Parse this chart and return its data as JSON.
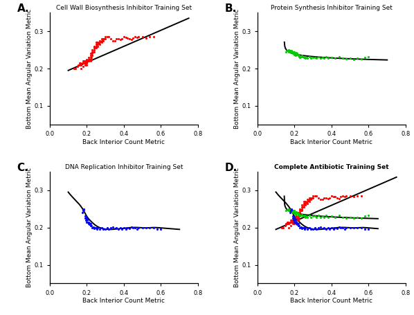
{
  "panel_A": {
    "title": "Cell Wall Biosynthesis Inhibitor Training Set",
    "color": "#ff0000",
    "x": [
      0.13,
      0.14,
      0.15,
      0.155,
      0.16,
      0.16,
      0.165,
      0.17,
      0.17,
      0.175,
      0.18,
      0.18,
      0.18,
      0.185,
      0.19,
      0.19,
      0.19,
      0.19,
      0.195,
      0.2,
      0.2,
      0.2,
      0.2,
      0.2,
      0.2,
      0.205,
      0.21,
      0.21,
      0.21,
      0.21,
      0.21,
      0.215,
      0.22,
      0.22,
      0.22,
      0.22,
      0.22,
      0.22,
      0.225,
      0.23,
      0.23,
      0.23,
      0.23,
      0.235,
      0.24,
      0.24,
      0.24,
      0.24,
      0.245,
      0.25,
      0.25,
      0.25,
      0.25,
      0.255,
      0.26,
      0.26,
      0.26,
      0.265,
      0.27,
      0.27,
      0.27,
      0.275,
      0.28,
      0.28,
      0.28,
      0.285,
      0.29,
      0.29,
      0.295,
      0.3,
      0.3,
      0.31,
      0.32,
      0.33,
      0.34,
      0.35,
      0.36,
      0.37,
      0.38,
      0.39,
      0.4,
      0.41,
      0.42,
      0.43,
      0.44,
      0.45,
      0.46,
      0.47,
      0.48,
      0.5,
      0.52,
      0.54,
      0.56
    ],
    "y": [
      0.2,
      0.2,
      0.205,
      0.21,
      0.21,
      0.215,
      0.215,
      0.2,
      0.21,
      0.215,
      0.205,
      0.215,
      0.22,
      0.22,
      0.215,
      0.21,
      0.215,
      0.22,
      0.22,
      0.21,
      0.215,
      0.22,
      0.225,
      0.22,
      0.215,
      0.22,
      0.22,
      0.225,
      0.22,
      0.225,
      0.23,
      0.225,
      0.22,
      0.225,
      0.23,
      0.235,
      0.24,
      0.225,
      0.23,
      0.235,
      0.24,
      0.245,
      0.25,
      0.245,
      0.245,
      0.25,
      0.255,
      0.26,
      0.255,
      0.255,
      0.26,
      0.265,
      0.27,
      0.265,
      0.26,
      0.265,
      0.27,
      0.268,
      0.265,
      0.27,
      0.275,
      0.272,
      0.27,
      0.275,
      0.28,
      0.278,
      0.275,
      0.28,
      0.28,
      0.28,
      0.285,
      0.285,
      0.285,
      0.28,
      0.275,
      0.275,
      0.28,
      0.28,
      0.278,
      0.28,
      0.285,
      0.283,
      0.282,
      0.28,
      0.278,
      0.282,
      0.285,
      0.283,
      0.285,
      0.285,
      0.282,
      0.285,
      0.285
    ],
    "fit_x_start": 0.1,
    "fit_x_end": 0.75,
    "fit_y_start": 0.195,
    "fit_y_end": 0.335
  },
  "panel_B": {
    "title": "Protein Synthesis Inhibitor Training Set",
    "color": "#00ff00",
    "x": [
      0.155,
      0.16,
      0.165,
      0.17,
      0.17,
      0.175,
      0.18,
      0.18,
      0.185,
      0.185,
      0.19,
      0.19,
      0.19,
      0.195,
      0.195,
      0.2,
      0.2,
      0.2,
      0.205,
      0.205,
      0.21,
      0.21,
      0.215,
      0.215,
      0.22,
      0.22,
      0.225,
      0.225,
      0.23,
      0.23,
      0.235,
      0.24,
      0.245,
      0.25,
      0.255,
      0.26,
      0.265,
      0.27,
      0.28,
      0.29,
      0.3,
      0.31,
      0.32,
      0.33,
      0.34,
      0.35,
      0.36,
      0.37,
      0.38,
      0.4,
      0.42,
      0.44,
      0.46,
      0.48,
      0.5,
      0.52,
      0.54,
      0.56,
      0.58,
      0.6
    ],
    "y": [
      0.245,
      0.248,
      0.248,
      0.245,
      0.25,
      0.248,
      0.245,
      0.242,
      0.248,
      0.245,
      0.242,
      0.24,
      0.245,
      0.245,
      0.24,
      0.242,
      0.245,
      0.238,
      0.24,
      0.235,
      0.238,
      0.242,
      0.238,
      0.24,
      0.235,
      0.238,
      0.235,
      0.232,
      0.232,
      0.23,
      0.232,
      0.235,
      0.232,
      0.23,
      0.232,
      0.228,
      0.23,
      0.228,
      0.232,
      0.228,
      0.23,
      0.23,
      0.228,
      0.232,
      0.228,
      0.23,
      0.228,
      0.232,
      0.228,
      0.23,
      0.228,
      0.232,
      0.228,
      0.226,
      0.228,
      0.225,
      0.228,
      0.226,
      0.23,
      0.232
    ]
  },
  "panel_C": {
    "title": "DNA Replication Inhibitor Training Set",
    "color": "#0000ff",
    "x": [
      0.175,
      0.18,
      0.185,
      0.185,
      0.19,
      0.19,
      0.195,
      0.195,
      0.2,
      0.2,
      0.2,
      0.205,
      0.205,
      0.21,
      0.21,
      0.215,
      0.215,
      0.22,
      0.22,
      0.225,
      0.23,
      0.235,
      0.24,
      0.245,
      0.25,
      0.255,
      0.26,
      0.27,
      0.28,
      0.29,
      0.3,
      0.31,
      0.32,
      0.33,
      0.34,
      0.35,
      0.36,
      0.37,
      0.38,
      0.39,
      0.4,
      0.41,
      0.42,
      0.43,
      0.44,
      0.45,
      0.46,
      0.47,
      0.48,
      0.5,
      0.52,
      0.54,
      0.56,
      0.58,
      0.6
    ],
    "y": [
      0.24,
      0.245,
      0.248,
      0.25,
      0.225,
      0.23,
      0.22,
      0.225,
      0.215,
      0.22,
      0.225,
      0.215,
      0.222,
      0.21,
      0.215,
      0.208,
      0.212,
      0.205,
      0.21,
      0.205,
      0.2,
      0.202,
      0.198,
      0.2,
      0.2,
      0.195,
      0.2,
      0.195,
      0.2,
      0.195,
      0.195,
      0.2,
      0.195,
      0.2,
      0.202,
      0.198,
      0.2,
      0.195,
      0.2,
      0.195,
      0.2,
      0.195,
      0.2,
      0.198,
      0.202,
      0.2,
      0.2,
      0.195,
      0.2,
      0.2,
      0.2,
      0.2,
      0.2,
      0.195,
      0.195
    ],
    "curve_x": [
      0.1,
      0.13,
      0.16,
      0.18,
      0.2,
      0.22,
      0.25,
      0.28,
      0.32,
      0.36,
      0.4,
      0.44,
      0.48,
      0.52,
      0.56,
      0.6,
      0.65,
      0.7
    ],
    "curve_y": [
      0.295,
      0.278,
      0.262,
      0.248,
      0.23,
      0.218,
      0.205,
      0.198,
      0.195,
      0.196,
      0.198,
      0.2,
      0.2,
      0.199,
      0.2,
      0.199,
      0.197,
      0.195
    ]
  },
  "panel_D": {
    "title": "Complete Antibiotic Training Set",
    "title_bold": true
  },
  "xlabel": "Back Interior Count Metric",
  "ylabel": "Bottom Mean Angular Variation Metric",
  "xlim": [
    0.0,
    0.8
  ],
  "ylim": [
    0.05,
    0.35
  ],
  "xticks": [
    0.0,
    0.2,
    0.4,
    0.6,
    0.8
  ],
  "yticks": [
    0.1,
    0.2,
    0.3
  ],
  "panel_labels": [
    "A.",
    "B.",
    "C.",
    "D."
  ],
  "background_color": "#ffffff",
  "fit_line_color": "#000000",
  "marker_size": 5,
  "fit_linewidth": 1.4,
  "red_color": "#ff0000",
  "green_color": "#00cc00",
  "blue_color": "#0000ff"
}
